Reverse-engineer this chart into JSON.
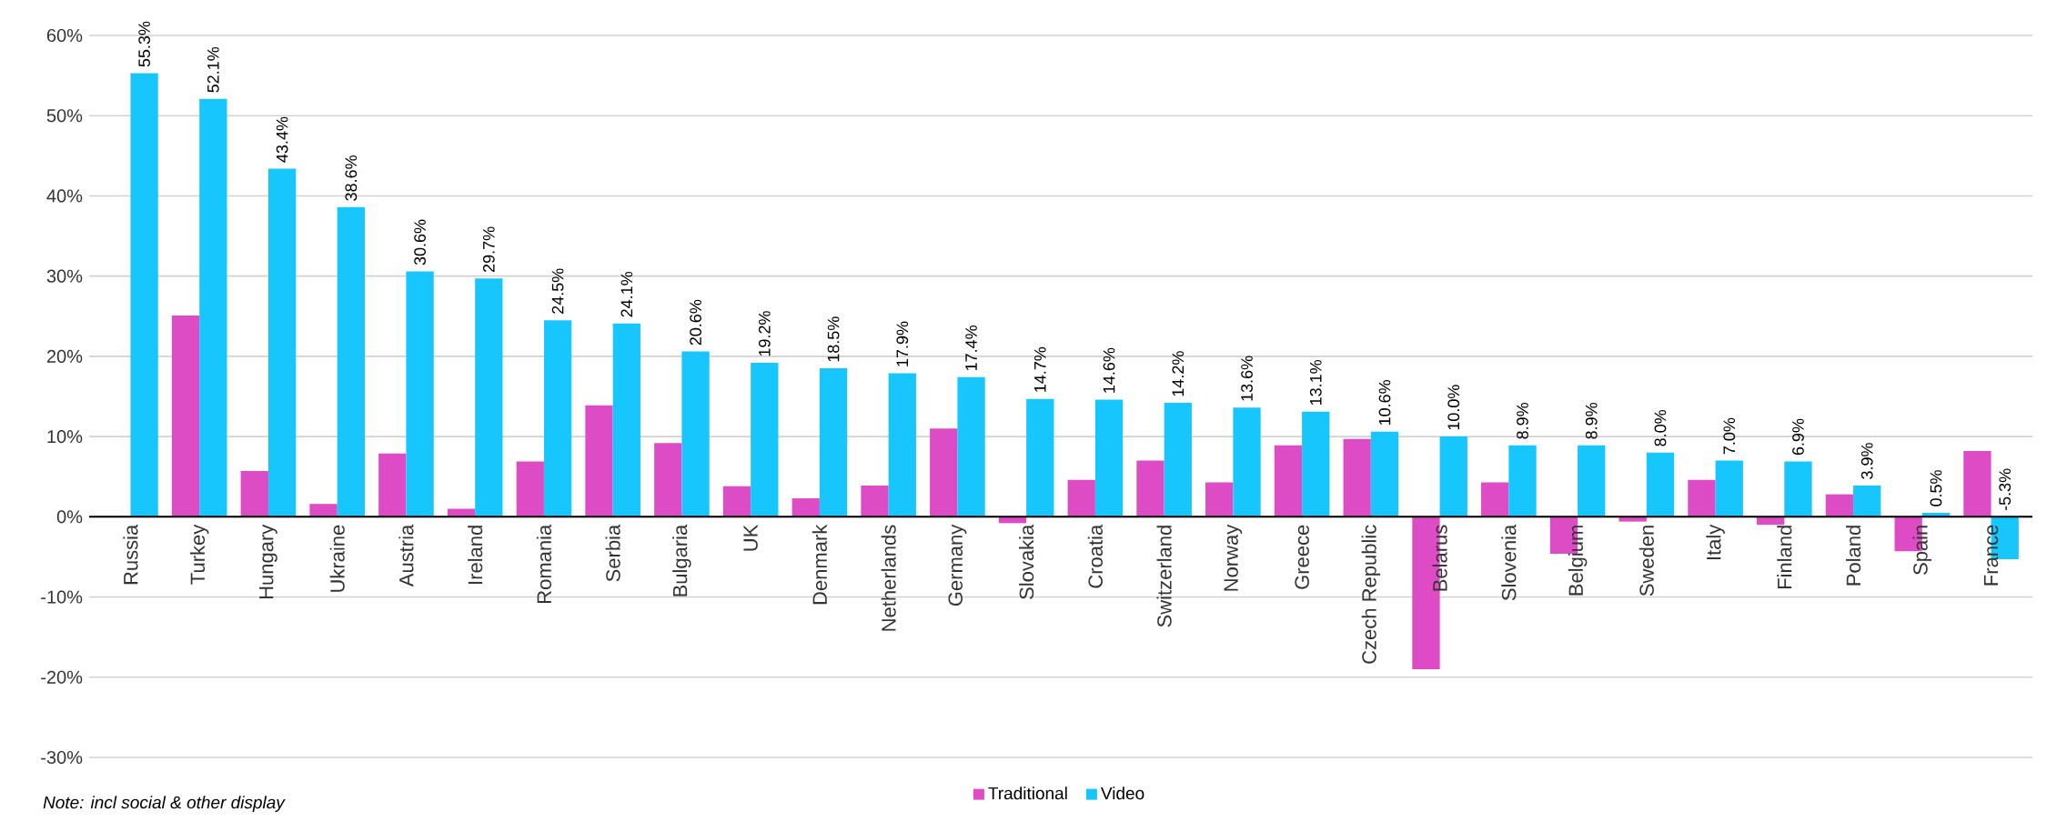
{
  "chart_data": {
    "type": "bar",
    "categories": [
      "Russia",
      "Turkey",
      "Hungary",
      "Ukraine",
      "Austria",
      "Ireland",
      "Romania",
      "Serbia",
      "Bulgaria",
      "UK",
      "Denmark",
      "Netherlands",
      "Germany",
      "Slovakia",
      "Croatia",
      "Switzerland",
      "Norway",
      "Greece",
      "Czech Republic",
      "Belarus",
      "Slovenia",
      "Belgium",
      "Sweden",
      "Italy",
      "Finland",
      "Poland",
      "Spain",
      "France"
    ],
    "series": [
      {
        "name": "Traditional",
        "color": "#dd4cc4",
        "values": [
          null,
          25.1,
          5.7,
          1.6,
          7.9,
          1.0,
          6.9,
          13.9,
          9.2,
          3.8,
          2.3,
          3.9,
          11.0,
          -0.8,
          4.6,
          7.0,
          4.3,
          8.9,
          9.7,
          -19.0,
          4.3,
          -4.6,
          -0.6,
          4.6,
          -1.0,
          2.8,
          -4.3,
          8.2
        ]
      },
      {
        "name": "Video",
        "color": "#18c6fe",
        "values": [
          55.3,
          52.1,
          43.4,
          38.6,
          30.6,
          29.7,
          24.5,
          24.1,
          20.6,
          19.2,
          18.5,
          17.9,
          17.4,
          14.7,
          14.6,
          14.2,
          13.6,
          13.1,
          10.6,
          10.0,
          8.9,
          8.9,
          8.0,
          7.0,
          6.9,
          3.9,
          0.5,
          -5.3
        ],
        "value_labels": [
          "55.3%",
          "52.1%",
          "43.4%",
          "38.6%",
          "30.6%",
          "29.7%",
          "24.5%",
          "24.1%",
          "20.6%",
          "19.2%",
          "18.5%",
          "17.9%",
          "17.4%",
          "14.7%",
          "14.6%",
          "14.2%",
          "13.6%",
          "13.1%",
          "10.6%",
          "10.0%",
          "8.9%",
          "8.9%",
          "8.0%",
          "7.0%",
          "6.9%",
          "3.9%",
          "0.5%",
          "-5.3%"
        ]
      }
    ],
    "ylim": [
      -30,
      60
    ],
    "yticks": [
      {
        "value": -30,
        "label": "-30%"
      },
      {
        "value": -20,
        "label": "-20%"
      },
      {
        "value": -10,
        "label": "-10%"
      },
      {
        "value": 0,
        "label": "0%"
      },
      {
        "value": 10,
        "label": "10%"
      },
      {
        "value": 20,
        "label": "20%"
      },
      {
        "value": 30,
        "label": "30%"
      },
      {
        "value": 40,
        "label": "40%"
      },
      {
        "value": 50,
        "label": "50%"
      },
      {
        "value": 60,
        "label": "60%"
      }
    ],
    "grid": "y",
    "legend": "bottom",
    "annotations": [
      "Note: incl social & other display"
    ]
  }
}
